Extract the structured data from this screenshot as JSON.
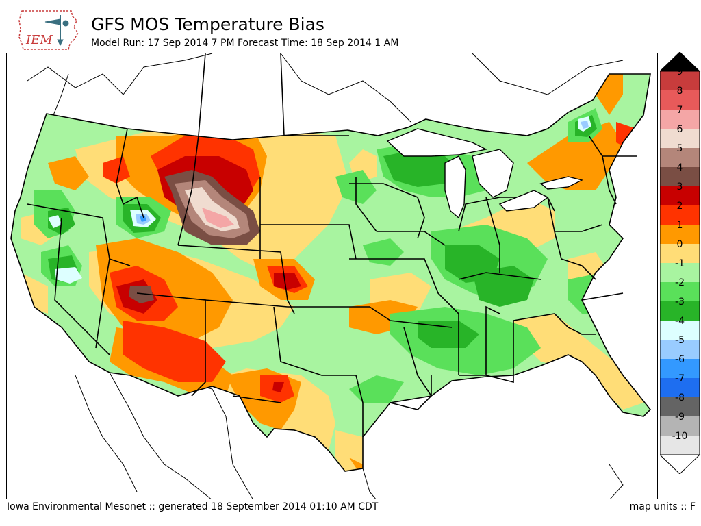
{
  "header": {
    "logo_text": "IEM",
    "title": "GFS MOS Temperature Bias",
    "subtitle": "Model Run: 17 Sep 2014 7 PM Forecast Time: 18 Sep 2014 1 AM"
  },
  "colorbar": {
    "labels": [
      "9",
      "8",
      "7",
      "6",
      "5",
      "4",
      "3",
      "2",
      "1",
      "0",
      "-1",
      "-2",
      "-3",
      "-4",
      "-5",
      "-6",
      "-7",
      "-8",
      "-9",
      "-10"
    ],
    "colors": [
      "#c83c3c",
      "#e85a5a",
      "#f4a6a6",
      "#f0dcd0",
      "#b4867a",
      "#7a4e44",
      "#c80000",
      "#ff3300",
      "#ff9900",
      "#ffdd77",
      "#a8f4a0",
      "#5ae05a",
      "#28b428",
      "#ddffff",
      "#99ccff",
      "#3399ff",
      "#1e6ef0",
      "#646464",
      "#b4b4b4",
      "#e6e6e6"
    ],
    "top_arrow_color": "#000000",
    "bottom_arrow_color": "#ffffff"
  },
  "map": {
    "background_color": "#a8f4a0",
    "outside_color": "#ffffff"
  },
  "footer": {
    "left": "Iowa Environmental Mesonet :: generated 18 September 2014 01:10 AM CDT",
    "right": "map units :: F"
  }
}
